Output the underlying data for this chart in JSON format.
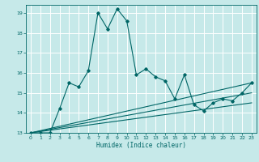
{
  "title": "",
  "xlabel": "Humidex (Indice chaleur)",
  "xlim": [
    -0.5,
    23.5
  ],
  "ylim": [
    13,
    19.4
  ],
  "yticks": [
    13,
    14,
    15,
    16,
    17,
    18,
    19
  ],
  "xticks": [
    0,
    1,
    2,
    3,
    4,
    5,
    6,
    7,
    8,
    9,
    10,
    11,
    12,
    13,
    14,
    15,
    16,
    17,
    18,
    19,
    20,
    21,
    22,
    23
  ],
  "bg_color": "#c6e9e9",
  "line_color": "#006666",
  "grid_color": "#ffffff",
  "series1_x": [
    0,
    1,
    2,
    3,
    4,
    5,
    6,
    7,
    8,
    9,
    10,
    11,
    12,
    13,
    14,
    15,
    16,
    17,
    18,
    19,
    20,
    21,
    22,
    23
  ],
  "series1_y": [
    13,
    13,
    13,
    14.2,
    15.5,
    15.3,
    16.1,
    19.0,
    18.2,
    19.2,
    18.6,
    15.9,
    16.2,
    15.8,
    15.6,
    14.7,
    15.9,
    14.4,
    14.1,
    14.5,
    14.7,
    14.6,
    15.0,
    15.5
  ],
  "line2_x": [
    0,
    23
  ],
  "line2_y": [
    13,
    14.5
  ],
  "line3_x": [
    0,
    23
  ],
  "line3_y": [
    13,
    15.0
  ],
  "line4_x": [
    0,
    23
  ],
  "line4_y": [
    13,
    15.5
  ]
}
